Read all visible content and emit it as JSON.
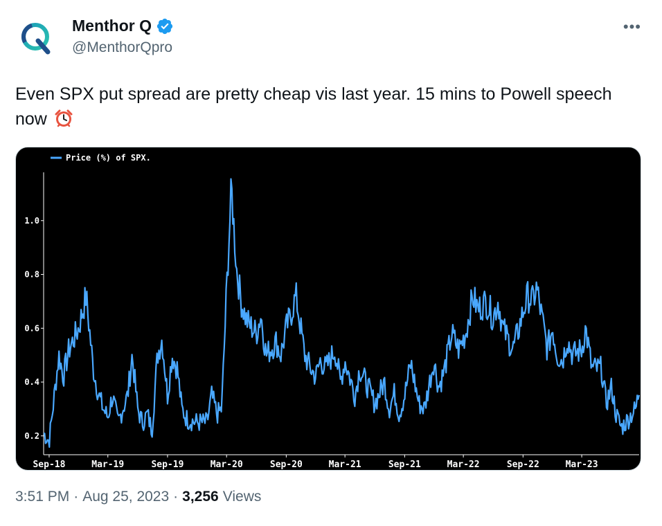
{
  "author": {
    "name": "Menthor Q",
    "handle": "@MenthorQpro",
    "verified_icon": "verified-badge-icon",
    "brand_color": "#1d9bf0"
  },
  "tweet": {
    "text": "Even SPX put spread are pretty cheap vis last year. 15 mins to Powell speech now",
    "emoji_icon": "alarm-clock-icon"
  },
  "meta": {
    "time": "3:51 PM",
    "sep1": "·",
    "date": "Aug 25, 2023",
    "sep2": "·",
    "views_count": "3,256",
    "views_label": "Views"
  },
  "chart_data": {
    "type": "line",
    "title": "",
    "legend": [
      "Price (%) of SPX."
    ],
    "legend_position": "top-left",
    "xlabel": "",
    "ylabel": "",
    "x_ticks": [
      "Sep-18",
      "Mar-19",
      "Sep-19",
      "Mar-20",
      "Sep-20",
      "Mar-21",
      "Sep-21",
      "Mar-22",
      "Sep-22",
      "Mar-23"
    ],
    "y_ticks": [
      0.2,
      0.4,
      0.6,
      0.8,
      1.0
    ],
    "ylim": [
      0.13,
      1.2
    ],
    "grid": false,
    "background": "#000000",
    "series": [
      {
        "name": "Price (%) of SPX.",
        "color": "#4aa8ff",
        "x": [
          "2018-08-15",
          "2018-09-01",
          "2018-10-01",
          "2018-10-15",
          "2018-11-01",
          "2018-12-01",
          "2018-12-24",
          "2019-01-15",
          "2019-02-01",
          "2019-02-15",
          "2019-03-01",
          "2019-03-15",
          "2019-04-01",
          "2019-05-01",
          "2019-05-15",
          "2019-06-01",
          "2019-06-15",
          "2019-07-01",
          "2019-07-15",
          "2019-08-01",
          "2019-08-15",
          "2019-09-01",
          "2019-09-15",
          "2019-10-01",
          "2019-10-15",
          "2019-11-01",
          "2019-12-01",
          "2020-01-01",
          "2020-01-15",
          "2020-02-01",
          "2020-02-15",
          "2020-03-01",
          "2020-03-16",
          "2020-04-01",
          "2020-04-15",
          "2020-05-01",
          "2020-06-01",
          "2020-06-15",
          "2020-07-01",
          "2020-08-01",
          "2020-08-15",
          "2020-09-01",
          "2020-09-15",
          "2020-10-01",
          "2020-10-28",
          "2020-11-15",
          "2020-12-01",
          "2020-12-15",
          "2021-01-01",
          "2021-01-29",
          "2021-02-15",
          "2021-03-01",
          "2021-04-01",
          "2021-04-15",
          "2021-05-15",
          "2021-06-01",
          "2021-07-01",
          "2021-07-15",
          "2021-08-01",
          "2021-08-15",
          "2021-09-01",
          "2021-09-20",
          "2021-10-15",
          "2021-11-01",
          "2021-11-30",
          "2021-12-15",
          "2022-01-01",
          "2022-01-24",
          "2022-02-15",
          "2022-03-08",
          "2022-03-30",
          "2022-04-15",
          "2022-05-10",
          "2022-06-01",
          "2022-06-16",
          "2022-07-01",
          "2022-08-01",
          "2022-08-15",
          "2022-09-01",
          "2022-09-15",
          "2022-10-01",
          "2022-10-13",
          "2022-11-01",
          "2022-11-15",
          "2022-12-01",
          "2022-12-15",
          "2023-01-01",
          "2023-01-15",
          "2023-02-01",
          "2023-03-01",
          "2023-03-13",
          "2023-04-01",
          "2023-05-01",
          "2023-05-15",
          "2023-06-01",
          "2023-06-15",
          "2023-07-01",
          "2023-07-15",
          "2023-08-01",
          "2023-08-15",
          "2023-08-25"
        ],
        "y": [
          0.21,
          0.18,
          0.5,
          0.42,
          0.52,
          0.6,
          0.72,
          0.45,
          0.35,
          0.3,
          0.27,
          0.35,
          0.25,
          0.35,
          0.5,
          0.3,
          0.25,
          0.28,
          0.22,
          0.5,
          0.56,
          0.35,
          0.5,
          0.45,
          0.3,
          0.26,
          0.25,
          0.25,
          0.35,
          0.28,
          0.3,
          0.74,
          1.12,
          0.82,
          0.7,
          0.63,
          0.58,
          0.65,
          0.5,
          0.55,
          0.5,
          0.6,
          0.65,
          0.72,
          0.5,
          0.45,
          0.42,
          0.48,
          0.45,
          0.52,
          0.4,
          0.48,
          0.35,
          0.45,
          0.37,
          0.32,
          0.4,
          0.3,
          0.36,
          0.28,
          0.35,
          0.47,
          0.32,
          0.3,
          0.48,
          0.38,
          0.44,
          0.58,
          0.52,
          0.58,
          0.72,
          0.67,
          0.7,
          0.64,
          0.7,
          0.6,
          0.52,
          0.58,
          0.66,
          0.72,
          0.7,
          0.75,
          0.62,
          0.52,
          0.6,
          0.5,
          0.48,
          0.56,
          0.5,
          0.52,
          0.6,
          0.45,
          0.45,
          0.32,
          0.38,
          0.28,
          0.23,
          0.25,
          0.28,
          0.3,
          0.37
        ]
      }
    ]
  }
}
